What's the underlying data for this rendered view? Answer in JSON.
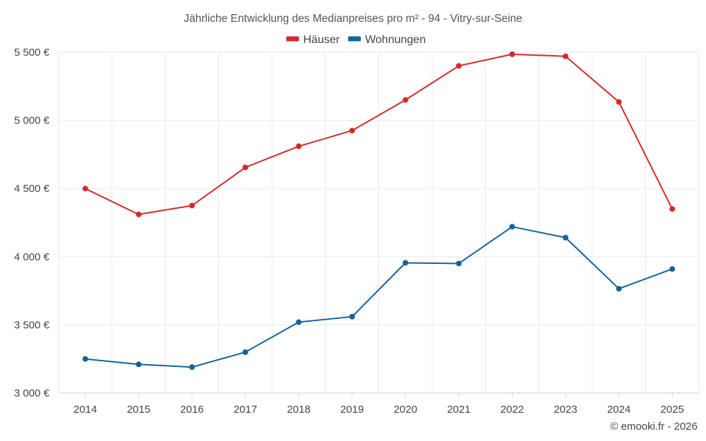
{
  "chart_data": {
    "type": "line",
    "title": "Jährliche Entwicklung des Medianpreises pro m² - 94 - Vitry-sur-Seine",
    "categories": [
      "2014",
      "2015",
      "2016",
      "2017",
      "2018",
      "2019",
      "2020",
      "2021",
      "2022",
      "2023",
      "2024",
      "2025"
    ],
    "series": [
      {
        "name": "Häuser",
        "color": "#d42a2a",
        "values": [
          4500,
          4310,
          4375,
          4655,
          4810,
          4925,
          5150,
          5400,
          5485,
          5470,
          5135,
          4350
        ]
      },
      {
        "name": "Wohnungen",
        "color": "#11649b",
        "values": [
          3250,
          3210,
          3190,
          3300,
          3520,
          3560,
          3955,
          3950,
          4220,
          4140,
          3765,
          3910
        ]
      }
    ],
    "ylim": [
      3000,
      5500
    ],
    "yticks": [
      3000,
      3500,
      4000,
      4500,
      5000,
      5500
    ],
    "ytick_labels": [
      "3 000 €",
      "3 500 €",
      "4 000 €",
      "4 500 €",
      "5 000 €",
      "5 500 €"
    ],
    "xlabel": "",
    "ylabel": "",
    "grid": true,
    "legend_position": "top-center"
  },
  "credit": "© emooki.fr - 2026"
}
